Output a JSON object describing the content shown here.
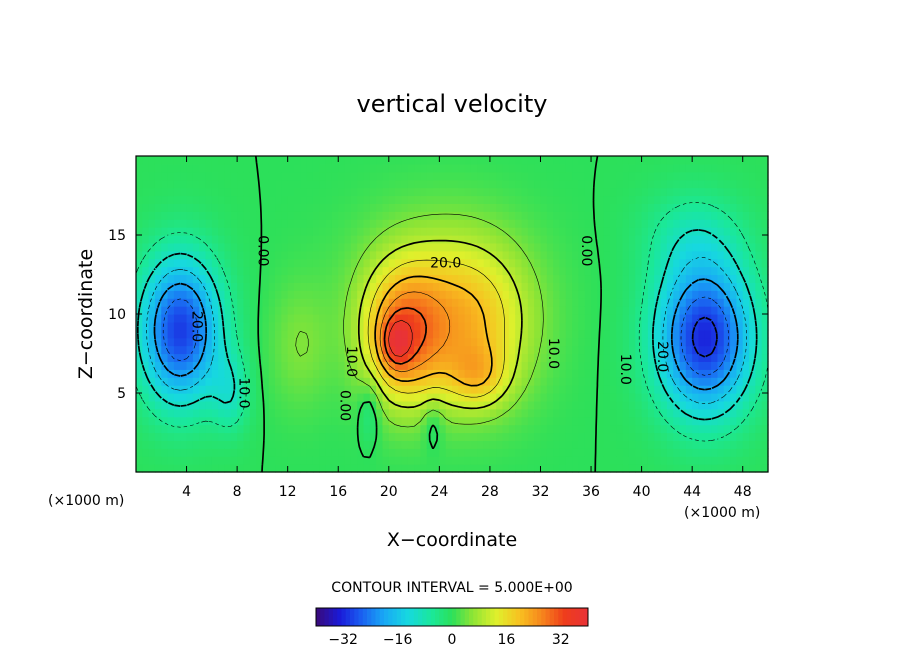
{
  "chart_data": {
    "type": "heatmap",
    "title": "vertical velocity",
    "xlabel": "X−coordinate",
    "ylabel": "Z−coordinate",
    "x_unit_left": "(×1000 m)",
    "x_unit_right": "(×1000 m)",
    "xlim": [
      0,
      50
    ],
    "ylim": [
      0,
      20
    ],
    "xticks": [
      4,
      8,
      12,
      16,
      20,
      24,
      28,
      32,
      36,
      40,
      44,
      48
    ],
    "yticks": [
      5,
      10,
      15
    ],
    "xtick_labels": [
      "4",
      "8",
      "12",
      "16",
      "20",
      "24",
      "28",
      "32",
      "36",
      "40",
      "44",
      "48"
    ],
    "ytick_labels": [
      "5",
      "10",
      "15"
    ],
    "contour_interval_text": "CONTOUR INTERVAL = 5.000E+00",
    "colorbar": {
      "range": [
        -40,
        40
      ],
      "ticks": [
        -32,
        -16,
        0,
        16,
        32
      ],
      "tick_labels": [
        "−32",
        "−16",
        "0",
        "16",
        "32"
      ]
    },
    "field_extrema": [
      {
        "x": 3.5,
        "z": 9,
        "value": -30
      },
      {
        "x": 20.5,
        "z": 8,
        "value": 38
      },
      {
        "x": 27,
        "z": 6,
        "value": 30
      },
      {
        "x": 45,
        "z": 8.5,
        "value": -33
      }
    ],
    "contour_labels": [
      {
        "text": "0.00",
        "x": 10,
        "z": 14
      },
      {
        "text": "0.00",
        "x": 35.6,
        "z": 14
      },
      {
        "text": "0.00",
        "x": 16.5,
        "z": 4.2
      },
      {
        "text": "10.0",
        "x": 8.5,
        "z": 5
      },
      {
        "text": "10.0",
        "x": 17,
        "z": 7
      },
      {
        "text": "10.0",
        "x": 33,
        "z": 7.5
      },
      {
        "text": "10.0",
        "x": 38.7,
        "z": 6.5
      },
      {
        "text": "20.0",
        "x": 4.8,
        "z": 9.2
      },
      {
        "text": "20.0",
        "x": 24.5,
        "z": 13.2
      },
      {
        "text": "20.0",
        "x": 41.6,
        "z": 7.3
      }
    ]
  }
}
